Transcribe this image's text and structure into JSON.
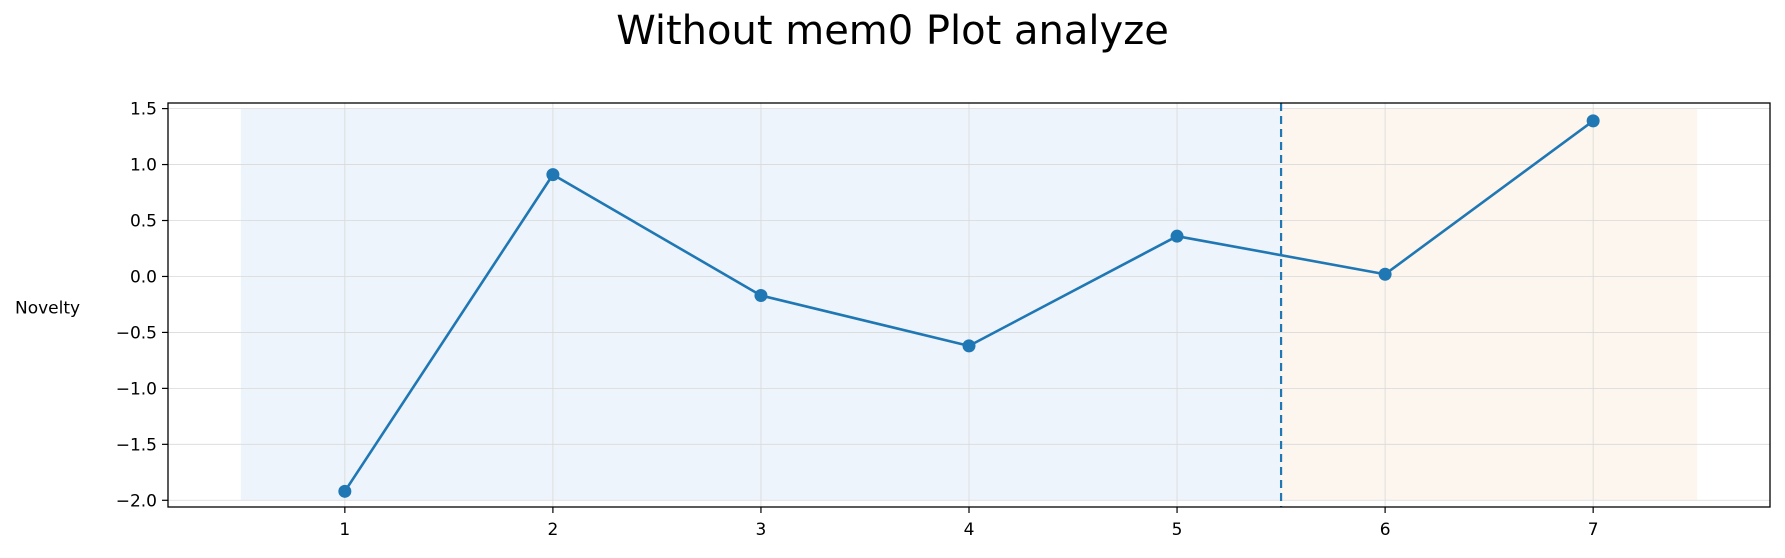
{
  "chart_data": {
    "type": "line",
    "title": "Without mem0 Plot analyze",
    "xlabel": "",
    "ylabel": "Novelty",
    "x": [
      1,
      2,
      3,
      4,
      5,
      6,
      7
    ],
    "series": [
      {
        "values": [
          -1.92,
          0.91,
          -0.17,
          -0.62,
          0.36,
          0.02,
          1.39
        ],
        "color": "#1f77b4"
      }
    ],
    "xlim": [
      0.15,
      7.85
    ],
    "ylim": [
      -2.06,
      1.55
    ],
    "x_ticks": [
      1,
      2,
      3,
      4,
      5,
      6,
      7
    ],
    "y_ticks": [
      -2.0,
      -1.5,
      -1.0,
      -0.5,
      0.0,
      0.5,
      1.0,
      1.5
    ],
    "y_tick_labels": [
      "−2.0",
      "−1.5",
      "−1.0",
      "−0.5",
      "0.0",
      "0.5",
      "1.0",
      "1.5"
    ],
    "shaded_regions": [
      {
        "x_start": 0.5,
        "x_end": 5.5,
        "color": "#eef4fb"
      },
      {
        "x_start": 5.5,
        "x_end": 7.5,
        "color": "#fdf6ee"
      }
    ],
    "vertical_line": {
      "x": 5.5,
      "style": "dashed",
      "color": "#1f77b4"
    },
    "grid": true,
    "marker": "circle",
    "line_color": "#1f77b4"
  }
}
